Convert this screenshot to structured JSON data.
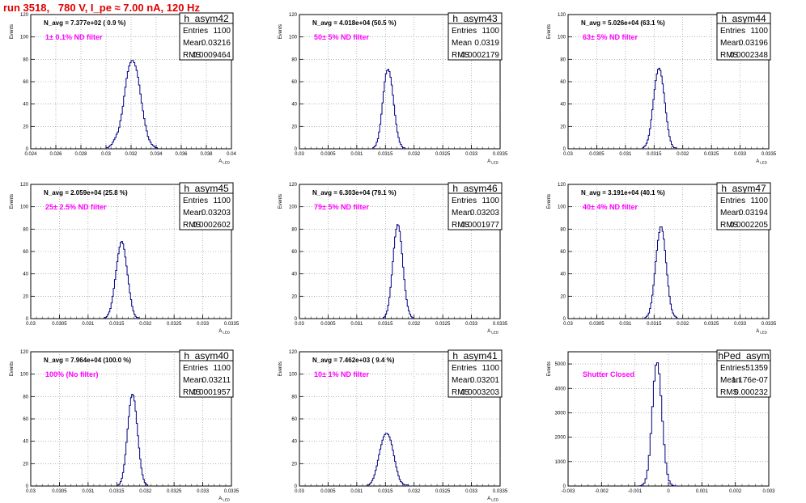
{
  "page": {
    "title": "run 3518,   780 V, I_pe ≈ 7.00 nA, 120 Hz"
  },
  "chart_data": [
    {
      "type": "histogram",
      "name": "h_asym42",
      "stats": {
        "entries_label": "Entries",
        "entries": "1100",
        "mean_label": "Mean",
        "mean": "0.03216",
        "rms_label": "RMS",
        "rms": "0.0009464"
      },
      "n_avg": "N_avg = 7.377e+02 ( 0.9 %)",
      "filter": "1± 0.1% ND filter",
      "xlabel": "A_LED",
      "ylabel": "Events",
      "xlim": [
        0.024,
        0.04
      ],
      "ylim": [
        0,
        120
      ],
      "xticks": [
        "0.024",
        "0.026",
        "0.028",
        "0.03",
        "0.032",
        "0.034",
        "0.036",
        "0.038",
        "0.04"
      ],
      "yticks": [
        "0",
        "20",
        "40",
        "60",
        "80",
        "100",
        "120"
      ],
      "bins": {
        "lo": 0.03,
        "width": 0.0001,
        "counts": [
          1,
          1,
          2,
          3,
          4,
          6,
          8,
          10,
          13,
          15,
          19,
          25,
          31,
          38,
          47,
          55,
          63,
          69,
          74,
          77,
          79,
          79,
          77,
          74,
          70,
          64,
          57,
          49,
          41,
          34,
          27,
          21,
          16,
          11,
          8,
          6,
          4,
          3,
          2,
          1,
          1
        ]
      }
    },
    {
      "type": "histogram",
      "name": "h_asym43",
      "stats": {
        "entries_label": "Entries",
        "entries": "1100",
        "mean_label": "Mean",
        "mean": "0.0319",
        "rms_label": "RMS",
        "rms": "0.0002179"
      },
      "n_avg": "N_avg = 4.018e+04 (50.5 %)",
      "filter": "50± 5% ND filter",
      "xlabel": "A_LED",
      "ylabel": "Events",
      "xlim": [
        0.03,
        0.0335
      ],
      "ylim": [
        0,
        120
      ],
      "xticks": [
        "0.03",
        "0.0305",
        "0.031",
        "0.0315",
        "0.032",
        "0.0325",
        "0.033",
        "0.0335"
      ],
      "yticks": [
        "0",
        "20",
        "40",
        "60",
        "80",
        "100",
        "120"
      ],
      "bins": {
        "lo": 0.03128,
        "width": 2e-05,
        "counts": [
          1,
          2,
          3,
          6,
          9,
          15,
          22,
          31,
          41,
          51,
          60,
          67,
          70,
          71,
          69,
          64,
          57,
          48,
          39,
          30,
          22,
          15,
          10,
          6,
          4,
          2,
          1,
          1
        ]
      }
    },
    {
      "type": "histogram",
      "name": "h_asym44",
      "stats": {
        "entries_label": "Entries",
        "entries": "1100",
        "mean_label": "Mean",
        "mean": "0.03196",
        "rms_label": "RMS",
        "rms": "0.0002348"
      },
      "n_avg": "N_avg = 5.026e+04 (63.1 %)",
      "filter": "63± 5% ND filter",
      "xlabel": "A_LED",
      "ylabel": "Events",
      "xlim": [
        0.03,
        0.0335
      ],
      "ylim": [
        0,
        120
      ],
      "xticks": [
        "0.03",
        "0.0305",
        "0.031",
        "0.0315",
        "0.032",
        "0.0325",
        "0.033",
        "0.0335"
      ],
      "yticks": [
        "0",
        "20",
        "40",
        "60",
        "80",
        "100",
        "120"
      ],
      "bins": {
        "lo": 0.0313,
        "width": 2e-05,
        "counts": [
          1,
          2,
          3,
          5,
          8,
          12,
          18,
          26,
          35,
          44,
          53,
          61,
          67,
          71,
          72,
          70,
          65,
          58,
          50,
          41,
          32,
          24,
          17,
          11,
          7,
          4,
          2,
          1,
          1
        ]
      }
    },
    {
      "type": "histogram",
      "name": "h_asym45",
      "stats": {
        "entries_label": "Entries",
        "entries": "1100",
        "mean_label": "Mean",
        "mean": "0.03203",
        "rms_label": "RMS",
        "rms": "0.0002602"
      },
      "n_avg": "N_avg = 2.059e+04 (25.8 %)",
      "filter": "25± 2.5% ND filter",
      "xlabel": "A_LED",
      "ylabel": "Events",
      "xlim": [
        0.03,
        0.0335
      ],
      "ylim": [
        0,
        120
      ],
      "xticks": [
        "0.03",
        "0.0305",
        "0.031",
        "0.0315",
        "0.032",
        "0.0325",
        "0.033",
        "0.0335"
      ],
      "yticks": [
        "0",
        "20",
        "40",
        "60",
        "80",
        "100",
        "120"
      ],
      "bins": {
        "lo": 0.03128,
        "width": 2e-05,
        "counts": [
          1,
          1,
          2,
          4,
          6,
          9,
          14,
          20,
          27,
          35,
          43,
          51,
          58,
          64,
          68,
          69,
          67,
          62,
          55,
          47,
          39,
          31,
          23,
          17,
          11,
          7,
          4,
          2,
          1,
          1
        ]
      }
    },
    {
      "type": "histogram",
      "name": "h_asym46",
      "stats": {
        "entries_label": "Entries",
        "entries": "1100",
        "mean_label": "Mean",
        "mean": "0.03203",
        "rms_label": "RMS",
        "rms": "0.0001977"
      },
      "n_avg": "N_avg = 6.303e+04 (79.1 %)",
      "filter": "79± 5% ND filter",
      "xlabel": "A_LED",
      "ylabel": "Events",
      "xlim": [
        0.03,
        0.0335
      ],
      "ylim": [
        0,
        120
      ],
      "xticks": [
        "0.03",
        "0.0305",
        "0.031",
        "0.0315",
        "0.032",
        "0.0325",
        "0.033",
        "0.0335"
      ],
      "yticks": [
        "0",
        "20",
        "40",
        "60",
        "80",
        "100",
        "120"
      ],
      "bins": {
        "lo": 0.03146,
        "width": 2e-05,
        "counts": [
          1,
          2,
          4,
          7,
          12,
          19,
          28,
          39,
          51,
          63,
          73,
          80,
          84,
          83,
          78,
          69,
          58,
          46,
          35,
          25,
          17,
          11,
          7,
          4,
          2,
          1
        ]
      }
    },
    {
      "type": "histogram",
      "name": "h_asym47",
      "stats": {
        "entries_label": "Entries",
        "entries": "1100",
        "mean_label": "Mean",
        "mean": "0.03194",
        "rms_label": "RMS",
        "rms": "0.0002205"
      },
      "n_avg": "N_avg = 3.191e+04 (40.1 %)",
      "filter": "40± 4% ND filter",
      "xlabel": "A_LED",
      "ylabel": "Events",
      "xlim": [
        0.03,
        0.0335
      ],
      "ylim": [
        0,
        120
      ],
      "xticks": [
        "0.03",
        "0.0305",
        "0.031",
        "0.0315",
        "0.032",
        "0.0325",
        "0.033",
        "0.0335"
      ],
      "yticks": [
        "0",
        "20",
        "40",
        "60",
        "80",
        "100",
        "120"
      ],
      "bins": {
        "lo": 0.03134,
        "width": 2e-05,
        "counts": [
          1,
          2,
          3,
          5,
          9,
          14,
          21,
          30,
          40,
          51,
          61,
          70,
          77,
          82,
          82,
          78,
          71,
          61,
          50,
          39,
          29,
          20,
          13,
          8,
          5,
          3,
          2,
          1
        ]
      }
    },
    {
      "type": "histogram",
      "name": "h_asym40",
      "stats": {
        "entries_label": "Entries",
        "entries": "1100",
        "mean_label": "Mean",
        "mean": "0.03211",
        "rms_label": "RMS",
        "rms": "0.0001957"
      },
      "n_avg": "N_avg = 7.964e+04 (100.0 %)",
      "filter": "100% (No filter)",
      "xlabel": "A_LED",
      "ylabel": "Events",
      "xlim": [
        0.03,
        0.0335
      ],
      "ylim": [
        0,
        120
      ],
      "xticks": [
        "0.03",
        "0.0305",
        "0.031",
        "0.0315",
        "0.032",
        "0.0325",
        "0.033",
        "0.0335"
      ],
      "yticks": [
        "0",
        "20",
        "40",
        "60",
        "80",
        "100",
        "120"
      ],
      "bins": {
        "lo": 0.03152,
        "width": 2e-05,
        "counts": [
          1,
          2,
          4,
          7,
          12,
          19,
          28,
          39,
          51,
          62,
          72,
          79,
          82,
          81,
          76,
          67,
          56,
          45,
          34,
          24,
          16,
          10,
          6,
          3,
          2,
          1
        ]
      }
    },
    {
      "type": "histogram",
      "name": "h_asym41",
      "stats": {
        "entries_label": "Entries",
        "entries": "1100",
        "mean_label": "Mean",
        "mean": "0.03201",
        "rms_label": "RMS",
        "rms": "0.0003203"
      },
      "n_avg": "N_avg = 7.462e+03 ( 9.4 %)",
      "filter": "10± 1% ND filter",
      "xlabel": "A_LED",
      "ylabel": "Events",
      "xlim": [
        0.03,
        0.0335
      ],
      "ylim": [
        0,
        120
      ],
      "xticks": [
        "0.03",
        "0.0305",
        "0.031",
        "0.0315",
        "0.032",
        "0.0325",
        "0.033",
        "0.0335"
      ],
      "yticks": [
        "0",
        "20",
        "40",
        "60",
        "80",
        "100",
        "120"
      ],
      "bins": {
        "lo": 0.03118,
        "width": 2e-05,
        "counts": [
          1,
          1,
          2,
          3,
          5,
          7,
          10,
          14,
          18,
          23,
          28,
          33,
          37,
          41,
          44,
          46,
          47,
          47,
          46,
          44,
          41,
          37,
          32,
          27,
          22,
          17,
          13,
          9,
          6,
          4,
          3,
          2,
          1,
          1,
          1,
          1
        ]
      }
    },
    {
      "type": "histogram",
      "name": "hPed_asym",
      "stats": {
        "entries_label": "Entries",
        "entries": "51359",
        "mean_label": "Mean",
        "mean": "1.176e-07",
        "rms_label": "RMS",
        "rms": "0.000232"
      },
      "filter": "Shutter Closed",
      "ylabel": "Events",
      "xlim": [
        -0.003,
        0.003
      ],
      "ylim": [
        0,
        5500
      ],
      "xticks": [
        "-0.003",
        "-0.002",
        "-0.001",
        "0",
        "0.001",
        "0.002",
        "0.003"
      ],
      "yticks": [
        "0",
        "1000",
        "2000",
        "3000",
        "4000",
        "5000"
      ],
      "bins": {
        "lo": -0.0009,
        "width": 5e-05,
        "counts": [
          5,
          15,
          45,
          120,
          300,
          650,
          1250,
          2150,
          3250,
          4300,
          4950,
          5050,
          4600,
          3700,
          2650,
          1700,
          950,
          480,
          210,
          85,
          30,
          10,
          3
        ]
      }
    }
  ]
}
